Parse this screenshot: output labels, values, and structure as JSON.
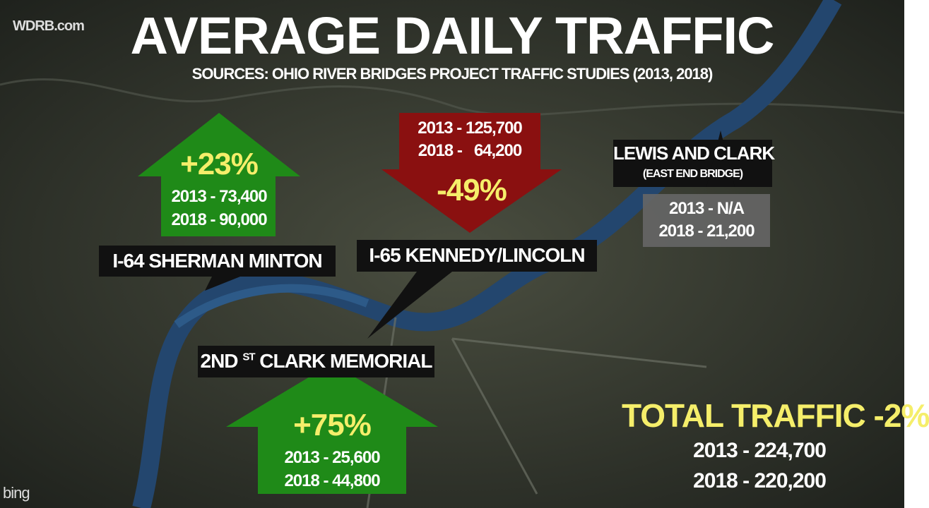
{
  "watermark": "WDRB.com",
  "title": "AVERAGE DAILY TRAFFIC",
  "sources": "SOURCES: OHIO RIVER BRIDGES PROJECT TRAFFIC STUDIES (2013, 2018)",
  "bridges": [
    {
      "name": "I-64 SHERMAN MINTON",
      "change": "+23%",
      "lines": [
        "2013 - 73,400",
        "2018 - 90,000"
      ]
    },
    {
      "name": "I-65 KENNEDY/LINCOLN",
      "change": "-49%",
      "lines": [
        "2013 - 125,700",
        "2018 -   64,200"
      ]
    },
    {
      "name": "LEWIS AND CLARK",
      "subname": "(EAST END BRIDGE)",
      "lines": [
        "2013 - N/A",
        "2018 - 21,200"
      ]
    },
    {
      "name_prefix": "2ND",
      "name_sup": "ST",
      "name_rest": "CLARK MEMORIAL",
      "change": "+75%",
      "lines": [
        "2013 - 25,600",
        "2018 - 44,800"
      ]
    }
  ],
  "total": {
    "label": "TOTAL TRAFFIC",
    "change": "-2%",
    "lines": [
      "2013 - 224,700",
      "2018 - 220,200"
    ]
  },
  "map_logo": "bing"
}
